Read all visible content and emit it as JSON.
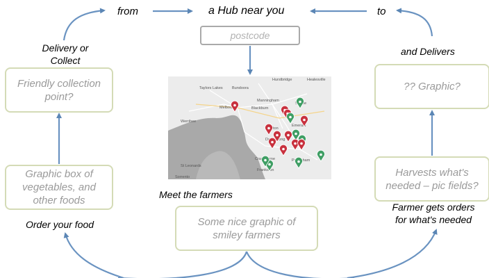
{
  "flow": {
    "from": "from",
    "hub": "a Hub near you",
    "to": "to",
    "delivery_or_collect": "Delivery or Collect",
    "and_delivers": "and Delivers",
    "meet_the_farmers": "Meet the farmers",
    "order_your_food": "Order your food",
    "farmer_gets_orders": "Farmer gets orders for what's needed"
  },
  "postcode": {
    "placeholder": "postcode"
  },
  "boxes": {
    "collection_point": "Friendly collection point?",
    "graphic_placeholder": "?? Graphic?",
    "graphic_box_vegetables": "Graphic box of vegetables, and other foods",
    "harvests": "Harvests what's needed – pic fields?",
    "smiley_farmers": "Some nice graphic of smiley farmers"
  },
  "map": {
    "place_labels": [
      "Hurstbridge",
      "Healesville",
      "Taylors Lakes",
      "Bundoora",
      "Manningham",
      "Melbourne",
      "Blackburn",
      "Seville",
      "Werribee",
      "Clayton",
      "Emerald",
      "Dandenong",
      "Cranbourne",
      "Pakenham",
      "St Leonards",
      "Frankston",
      "Sorrento"
    ],
    "colors": {
      "water": "#a9a9a9",
      "land": "#ececec",
      "red_pin": "#c8313e",
      "green_pin": "#3f9e64"
    }
  }
}
